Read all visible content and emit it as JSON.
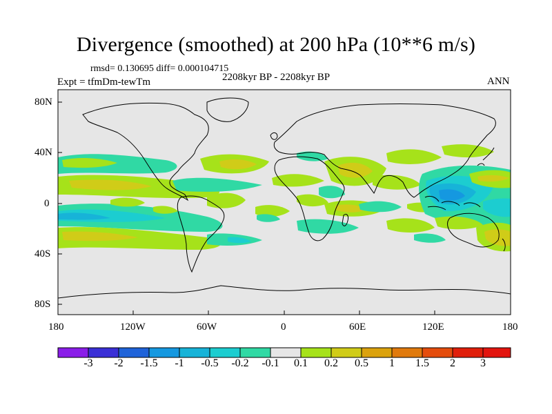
{
  "header": {
    "title": "Divergence (smoothed) at 200 hPa (10**6 m/s)",
    "stats": "rmsd= 0.130695 diff= 0.000104715",
    "experiment": "Expt = tfmDm-tewTm",
    "period": "2208kyr BP - 2208kyr BP",
    "season": "ANN"
  },
  "map": {
    "projection": "cylindrical equidistant",
    "lon_range": [
      -180,
      180
    ],
    "lat_range": [
      -90,
      90
    ],
    "background_color": "#e6e6e6",
    "coastline_color": "#000000",
    "x_ticks": [
      "180",
      "120W",
      "60W",
      "0",
      "60E",
      "120E",
      "180"
    ],
    "y_ticks": [
      "80N",
      "40N",
      "0",
      "40S",
      "80S"
    ]
  },
  "colorbar": {
    "labels": [
      "-3",
      "-2",
      "-1.5",
      "-1",
      "-0.5",
      "-0.2",
      "-0.1",
      "0.1",
      "0.2",
      "0.5",
      "1",
      "1.5",
      "2",
      "3"
    ],
    "colors": [
      "#8a1de8",
      "#3a2fd6",
      "#1f63d9",
      "#1598e0",
      "#17b3d8",
      "#1ccdd0",
      "#30d9a4",
      "#e6e6e6",
      "#a6e21a",
      "#d0cc18",
      "#dba20d",
      "#e07a0d",
      "#e44d0d",
      "#e01f0b",
      "#e3150f"
    ]
  }
}
